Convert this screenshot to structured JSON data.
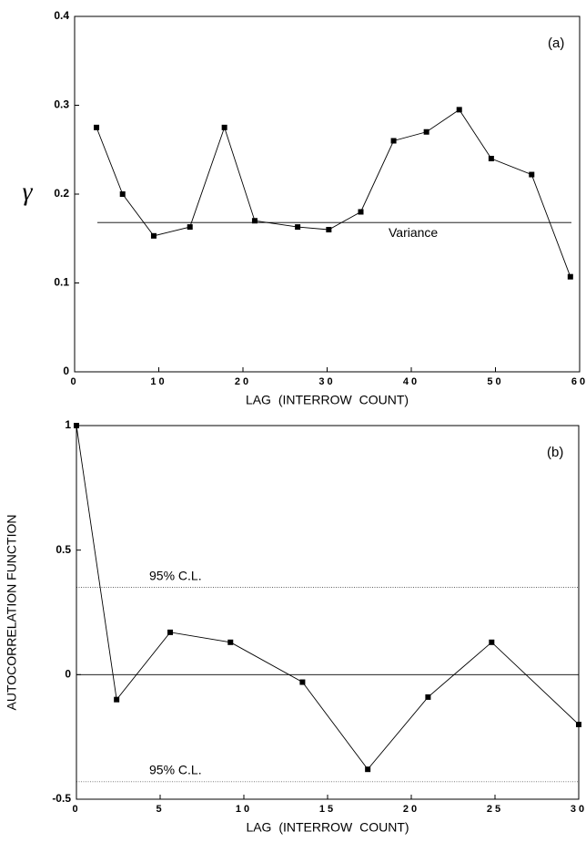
{
  "chart_data": [
    {
      "type": "line",
      "panel_label": "(a)",
      "x_label": "LAG (INTERROW COUNT)",
      "y_label": "γ",
      "series": [
        {
          "color": "#000000",
          "x": [
            2.6,
            5.7,
            9.4,
            13.7,
            17.8,
            21.4,
            26.5,
            30.2,
            34,
            37.9,
            41.8,
            45.7,
            49.5,
            54.3,
            58.9
          ],
          "values": [
            0.275,
            0.2,
            0.153,
            0.163,
            0.275,
            0.17,
            0.163,
            0.16,
            0.18,
            0.26,
            0.27,
            0.295,
            0.24,
            0.222,
            0.107
          ]
        }
      ],
      "reference_lines": [
        {
          "label": "Variance",
          "value": 0.168
        }
      ],
      "xlim": [
        0,
        60
      ],
      "xticks": [
        0,
        10,
        20,
        30,
        40,
        50,
        60
      ],
      "ylim": [
        0,
        0.4
      ],
      "yticks": [
        0,
        0.1,
        0.2,
        0.3,
        0.4
      ]
    },
    {
      "type": "line",
      "panel_label": "(b)",
      "x_label": "LAG (INTERROW COUNT)",
      "y_label": "AUTOCORRELATION FUNCTION",
      "series": [
        {
          "color": "#000000",
          "x": [
            0,
            2.4,
            5.6,
            9.2,
            13.5,
            17.4,
            21,
            24.8,
            30
          ],
          "values": [
            1,
            -0.1,
            0.17,
            0.13,
            -0.03,
            -0.38,
            -0.09,
            0.13,
            -0.2
          ]
        }
      ],
      "reference_lines": [
        {
          "label": "95% C.L.",
          "value": 0.35
        },
        {
          "label": "95% C.L.",
          "value": -0.43
        }
      ],
      "xlim": [
        0,
        30
      ],
      "xticks": [
        0,
        5,
        10,
        15,
        20,
        25,
        30
      ],
      "ylim": [
        -0.5,
        1
      ],
      "yticks": [
        -0.5,
        0,
        0.5,
        1
      ]
    }
  ]
}
